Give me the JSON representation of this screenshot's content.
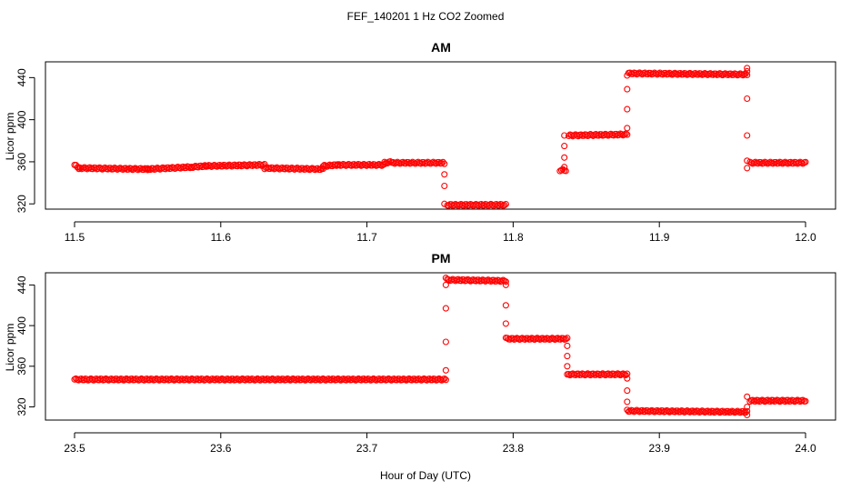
{
  "figure": {
    "title": "FEF_140201  1 Hz CO2 Zoomed",
    "xlabel": "Hour of Day (UTC)"
  },
  "colors": {
    "points": "#ff0000",
    "axes": "#000000",
    "background": "#ffffff"
  },
  "chart_data": [
    {
      "type": "scatter",
      "title": "AM",
      "xlabel": "Hour of Day (UTC)",
      "ylabel": "Licor ppm",
      "xlim": [
        11.5,
        12.0
      ],
      "ylim": [
        315,
        455
      ],
      "xticks": [
        "11.5",
        "11.6",
        "11.7",
        "11.8",
        "11.9",
        "12.0"
      ],
      "yticks": [
        "320",
        "360",
        "400",
        "440"
      ],
      "grid": false,
      "segments": [
        {
          "x": [
            11.5,
            11.503
          ],
          "y": [
            357,
            354
          ]
        },
        {
          "x": [
            11.503,
            11.55
          ],
          "y": [
            354,
            353
          ]
        },
        {
          "x": [
            11.55,
            11.58
          ],
          "y": [
            353,
            355
          ]
        },
        {
          "x": [
            11.58,
            11.59
          ],
          "y": [
            355,
            356
          ]
        },
        {
          "x": [
            11.59,
            11.63
          ],
          "y": [
            356,
            357
          ]
        },
        {
          "x": [
            11.63,
            11.67
          ],
          "y": [
            354,
            353
          ]
        },
        {
          "x": [
            11.67,
            11.68
          ],
          "y": [
            356,
            357
          ]
        },
        {
          "x": [
            11.68,
            11.712
          ],
          "y": [
            357,
            357
          ]
        },
        {
          "x": [
            11.712,
            11.718
          ],
          "y": [
            359,
            360
          ]
        },
        {
          "x": [
            11.718,
            11.752
          ],
          "y": [
            359,
            359
          ]
        },
        {
          "x": [
            11.755,
            11.795
          ],
          "y": [
            319,
            319
          ]
        },
        {
          "x": [
            11.832,
            11.836
          ],
          "y": [
            352,
            352
          ]
        },
        {
          "x": [
            11.838,
            11.878
          ],
          "y": [
            385,
            386
          ]
        },
        {
          "x": [
            11.879,
            11.96
          ],
          "y": [
            444,
            443
          ]
        },
        {
          "x": [
            11.962,
            12.0
          ],
          "y": [
            359,
            359
          ]
        }
      ],
      "transitions": [
        {
          "x": 11.753,
          "y": [
            358,
            348,
            337,
            320
          ]
        },
        {
          "x": 11.835,
          "y": [
            355,
            364,
            375,
            385
          ]
        },
        {
          "x": 11.878,
          "y": [
            392,
            410,
            429,
            442
          ]
        },
        {
          "x": 11.96,
          "y": [
            449,
            446,
            420,
            385,
            361,
            354
          ]
        }
      ]
    },
    {
      "type": "scatter",
      "title": "PM",
      "xlabel": "Hour of Day (UTC)",
      "ylabel": "Licor ppm",
      "xlim": [
        23.5,
        24.0
      ],
      "ylim": [
        307,
        452
      ],
      "xticks": [
        "23.5",
        "23.6",
        "23.7",
        "23.8",
        "23.9",
        "24.0"
      ],
      "yticks": [
        "320",
        "360",
        "400",
        "440"
      ],
      "grid": false,
      "segments": [
        {
          "x": [
            23.5,
            23.754
          ],
          "y": [
            347,
            347
          ]
        },
        {
          "x": [
            23.755,
            23.795
          ],
          "y": [
            445,
            444
          ]
        },
        {
          "x": [
            23.796,
            23.837
          ],
          "y": [
            387,
            387
          ]
        },
        {
          "x": [
            23.838,
            23.878
          ],
          "y": [
            352,
            352
          ]
        },
        {
          "x": [
            23.879,
            23.96
          ],
          "y": [
            316,
            315
          ]
        },
        {
          "x": [
            23.962,
            24.0
          ],
          "y": [
            326,
            326
          ]
        }
      ],
      "transitions": [
        {
          "x": 23.754,
          "y": [
            356,
            384,
            417,
            440,
            447
          ]
        },
        {
          "x": 23.795,
          "y": [
            440,
            420,
            402,
            388
          ]
        },
        {
          "x": 23.837,
          "y": [
            380,
            370,
            360,
            352
          ]
        },
        {
          "x": 23.878,
          "y": [
            348,
            336,
            325,
            317
          ]
        },
        {
          "x": 23.96,
          "y": [
            312,
            320,
            330
          ]
        }
      ]
    }
  ]
}
